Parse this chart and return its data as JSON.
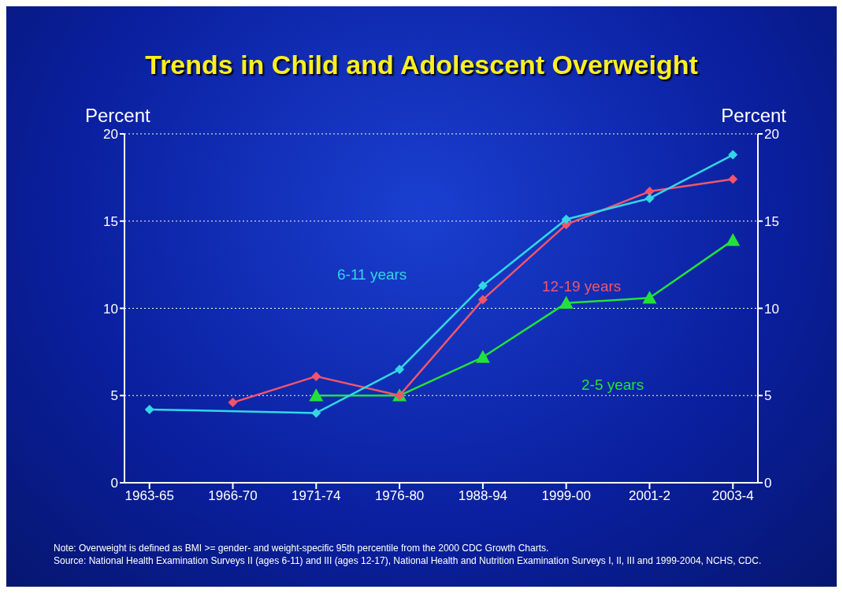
{
  "chart_data": {
    "type": "line",
    "title": "Trends in Child and Adolescent Overweight",
    "ylabel": "Percent",
    "y2label": "Percent",
    "categories": [
      "1963-65",
      "1966-70",
      "1971-74",
      "1976-80",
      "1988-94",
      "1999-00",
      "2001-2",
      "2003-4"
    ],
    "ylim": [
      0,
      20
    ],
    "yticks": [
      0,
      5,
      10,
      15,
      20
    ],
    "y2lim": [
      0,
      20
    ],
    "y2ticks": [
      0,
      5,
      10,
      15,
      20
    ],
    "grid": "y",
    "line_style": "solid",
    "series": [
      {
        "name": "6-11 years",
        "color": "#33d6e6",
        "marker": "diamond",
        "values": [
          4.2,
          null,
          4.0,
          6.5,
          11.3,
          15.1,
          16.3,
          18.8
        ]
      },
      {
        "name": "12-19 years",
        "color": "#f2556b",
        "marker": "diamond",
        "values": [
          null,
          4.6,
          6.1,
          5.0,
          10.5,
          14.8,
          16.7,
          17.4
        ]
      },
      {
        "name": "2-5 years",
        "color": "#22e23a",
        "marker": "triangle",
        "values": [
          null,
          null,
          5.0,
          5.0,
          7.2,
          10.3,
          10.6,
          13.9
        ]
      }
    ],
    "annotations": [
      "Note: Overweight is defined as BMI >= gender- and weight-specific 95th percentile from the 2000 CDC Growth Charts.",
      "Source: National Health Examination Surveys II (ages 6-11) and III (ages 12-17), National Health and Nutrition Examination Surveys I, II, III and 1999-2004, NCHS, CDC."
    ]
  }
}
